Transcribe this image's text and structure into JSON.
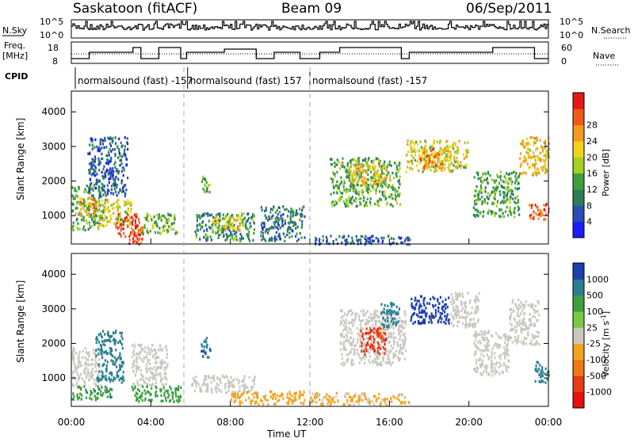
{
  "header": {
    "site": "Saskatoon (fitACF)",
    "beam": "Beam 09",
    "date": "06/Sep/2011"
  },
  "summary_panels": {
    "nsky_label": "N.Sky",
    "nsky_ticks": [
      "10^5",
      "10^0"
    ],
    "nsearch_label": "N.Search",
    "freq_label_1": "Freq.",
    "freq_label_2": "[MHz]",
    "freq_ticks": [
      "18",
      "8"
    ],
    "nave_label": "Nave",
    "nave_ticks": [
      "60",
      "0"
    ],
    "cpid_label": "CPID"
  },
  "cpid_segments": [
    {
      "label": "normalsound (fast) -157",
      "start_hour": 0.2
    },
    {
      "label": "normalsound (fast) 157",
      "start_hour": 5.85
    },
    {
      "label": "normalsound (fast) -157",
      "start_hour": 12.0
    }
  ],
  "axes": {
    "y_label": "Slant Range [km]",
    "x_label": "Time UT",
    "y_ticks": [
      "1000",
      "2000",
      "3000",
      "4000"
    ],
    "x_ticks": [
      "00:00",
      "04:00",
      "08:00",
      "12:00",
      "16:00",
      "20:00",
      "00:00"
    ]
  },
  "colorbars": {
    "power": {
      "label": "Power [dB]",
      "ticks": [
        "4",
        "8",
        "12",
        "16",
        "20",
        "24",
        "28"
      ],
      "colors": [
        "#1c1cff",
        "#2a4eb4",
        "#2e7d5a",
        "#3f9e3f",
        "#a6cf24",
        "#f1d21b",
        "#f59a1e",
        "#ef5a18",
        "#e51919"
      ]
    },
    "velocity": {
      "label": "Velocity [m s",
      "label_sup": "-1",
      "label_end": "]",
      "ticks": [
        "1000",
        "500",
        "100",
        "25",
        "-25",
        "-100",
        "-500",
        "-1000"
      ],
      "colors": [
        "#1d3fb0",
        "#2a7f8f",
        "#3f9e3f",
        "#7ac943",
        "#c8c8c0",
        "#f2a31d",
        "#f07618",
        "#e63b15",
        "#e61010"
      ]
    }
  },
  "chart_data": [
    {
      "type": "heatmap",
      "title": "Power",
      "quantity": "power",
      "x_range_hours": [
        0,
        24
      ],
      "ylim": [
        180,
        4600
      ],
      "units": "dB",
      "regions": [
        {
          "t0": 0.0,
          "t1": 1.6,
          "r0": 600,
          "r1": 1900,
          "v": 12
        },
        {
          "t0": 0.3,
          "t1": 1.3,
          "r0": 1050,
          "r1": 1550,
          "v": 22
        },
        {
          "t0": 1.3,
          "t1": 3.0,
          "r0": 700,
          "r1": 1500,
          "v": 18
        },
        {
          "t0": 2.2,
          "t1": 3.4,
          "r0": 400,
          "r1": 1100,
          "v": 26
        },
        {
          "t0": 2.8,
          "t1": 3.6,
          "r0": 200,
          "r1": 700,
          "v": 28
        },
        {
          "t0": 3.5,
          "t1": 5.3,
          "r0": 500,
          "r1": 1100,
          "v": 14
        },
        {
          "t0": 0.8,
          "t1": 2.8,
          "r0": 1600,
          "r1": 3300,
          "v": 6
        },
        {
          "t0": 6.2,
          "t1": 9.2,
          "r0": 300,
          "r1": 1100,
          "v": 10
        },
        {
          "t0": 7.0,
          "t1": 8.6,
          "r0": 600,
          "r1": 1000,
          "v": 18
        },
        {
          "t0": 6.5,
          "t1": 7.0,
          "r0": 1700,
          "r1": 2200,
          "v": 14
        },
        {
          "t0": 9.5,
          "t1": 11.7,
          "r0": 300,
          "r1": 1300,
          "v": 8
        },
        {
          "t0": 12.0,
          "t1": 17.0,
          "r0": 200,
          "r1": 450,
          "v": 6
        },
        {
          "t0": 13.0,
          "t1": 16.5,
          "r0": 1300,
          "r1": 2700,
          "v": 12
        },
        {
          "t0": 14.0,
          "t1": 16.0,
          "r0": 1900,
          "r1": 2600,
          "v": 20
        },
        {
          "t0": 16.8,
          "t1": 20.0,
          "r0": 2300,
          "r1": 3200,
          "v": 18
        },
        {
          "t0": 17.5,
          "t1": 19.0,
          "r0": 2400,
          "r1": 3000,
          "v": 24
        },
        {
          "t0": 20.2,
          "t1": 22.5,
          "r0": 1000,
          "r1": 2300,
          "v": 12
        },
        {
          "t0": 22.5,
          "t1": 24.0,
          "r0": 2200,
          "r1": 3300,
          "v": 20
        },
        {
          "t0": 23.0,
          "t1": 24.0,
          "r0": 900,
          "r1": 1400,
          "v": 26
        }
      ]
    },
    {
      "type": "heatmap",
      "title": "Velocity",
      "quantity": "velocity",
      "x_range_hours": [
        0,
        24
      ],
      "ylim": [
        180,
        4600
      ],
      "units": "m s-1",
      "regions": [
        {
          "t0": 0.0,
          "t1": 1.5,
          "r0": 800,
          "r1": 1900,
          "v": 0
        },
        {
          "t0": 0.0,
          "t1": 2.0,
          "r0": 400,
          "r1": 800,
          "v": 80
        },
        {
          "t0": 1.2,
          "t1": 2.6,
          "r0": 900,
          "r1": 2400,
          "v": 300
        },
        {
          "t0": 3.0,
          "t1": 4.8,
          "r0": 800,
          "r1": 2000,
          "v": 0
        },
        {
          "t0": 3.0,
          "t1": 5.5,
          "r0": 350,
          "r1": 800,
          "v": 60
        },
        {
          "t0": 6.0,
          "t1": 9.3,
          "r0": 600,
          "r1": 1100,
          "v": 0
        },
        {
          "t0": 6.5,
          "t1": 7.0,
          "r0": 1600,
          "r1": 2200,
          "v": 400
        },
        {
          "t0": 8.0,
          "t1": 11.7,
          "r0": 250,
          "r1": 650,
          "v": -60
        },
        {
          "t0": 12.0,
          "t1": 17.0,
          "r0": 250,
          "r1": 600,
          "v": -30
        },
        {
          "t0": 13.5,
          "t1": 16.8,
          "r0": 1400,
          "r1": 3000,
          "v": 0
        },
        {
          "t0": 14.5,
          "t1": 15.8,
          "r0": 1700,
          "r1": 2500,
          "v": -700
        },
        {
          "t0": 15.5,
          "t1": 16.5,
          "r0": 2500,
          "r1": 3200,
          "v": 200
        },
        {
          "t0": 17.0,
          "t1": 19.0,
          "r0": 2600,
          "r1": 3400,
          "v": 900
        },
        {
          "t0": 19.0,
          "t1": 20.5,
          "r0": 2500,
          "r1": 3500,
          "v": 0
        },
        {
          "t0": 20.2,
          "t1": 22.0,
          "r0": 1100,
          "r1": 2400,
          "v": 0
        },
        {
          "t0": 22.0,
          "t1": 23.5,
          "r0": 2000,
          "r1": 3300,
          "v": 0
        },
        {
          "t0": 23.3,
          "t1": 24.0,
          "r0": 900,
          "r1": 1500,
          "v": 300
        }
      ]
    }
  ]
}
